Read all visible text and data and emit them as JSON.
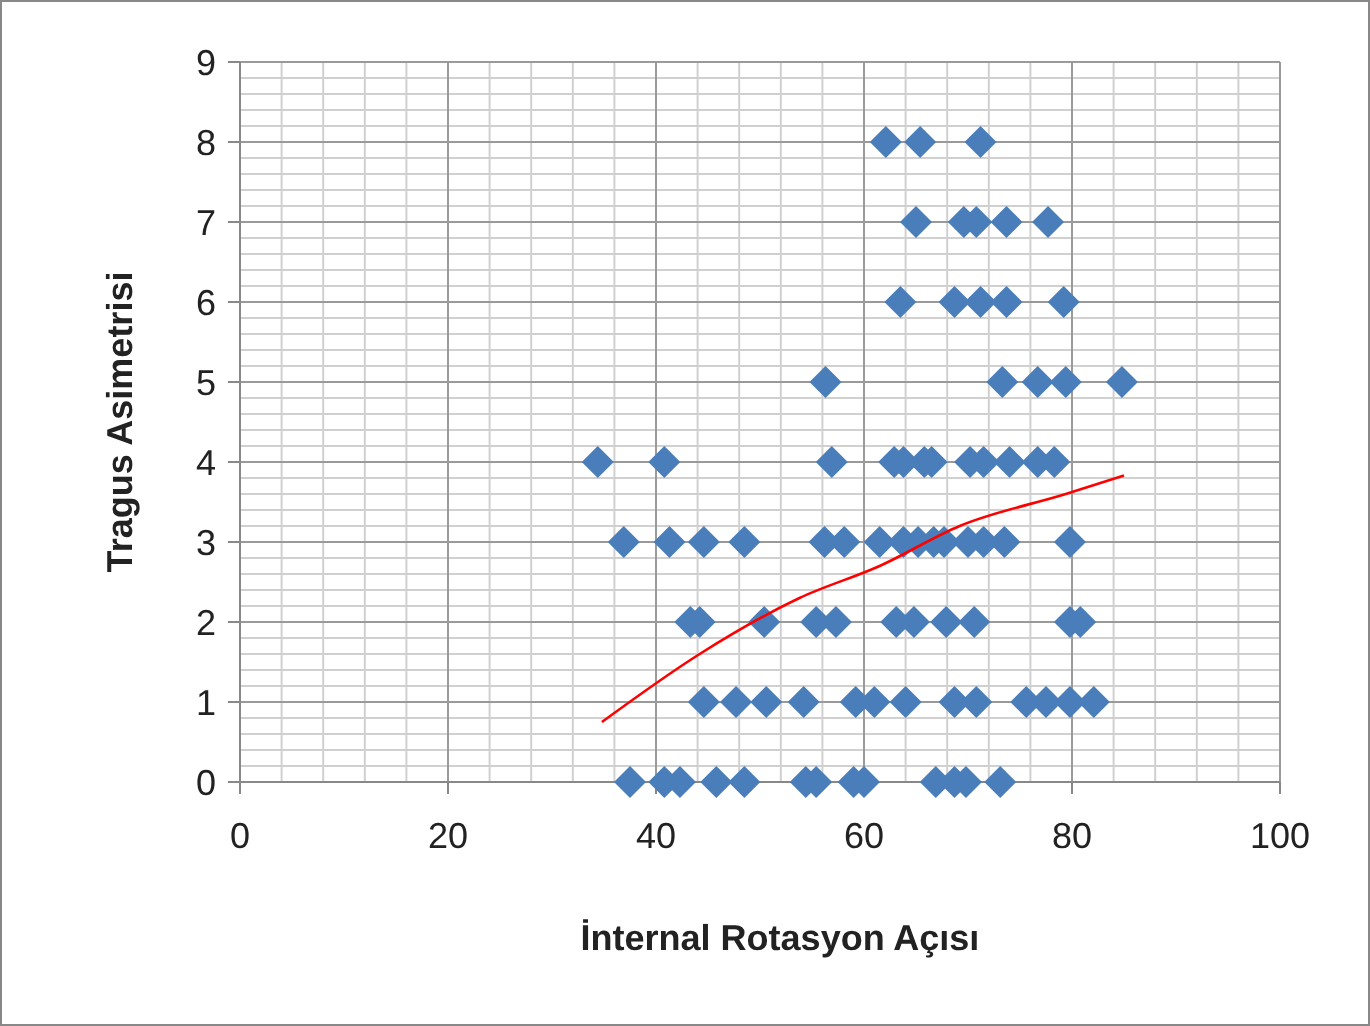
{
  "chart_data": {
    "type": "scatter",
    "xlabel": "İnternal Rotasyon Açısı",
    "ylabel": "Tragus Asimetrisi",
    "xlim": [
      0,
      100
    ],
    "xticks": [
      0,
      20,
      40,
      60,
      80,
      100
    ],
    "ylim": [
      0,
      9
    ],
    "yticks": [
      0,
      1,
      2,
      3,
      4,
      5,
      6,
      7,
      8,
      9
    ],
    "grid": true,
    "series": [
      {
        "marker": "diamond",
        "color": "#4a7ebb",
        "x": [
          62.1,
          65.4,
          71.2,
          65,
          69.6,
          70.8,
          73.7,
          77.7,
          63.5,
          68.7,
          71.2,
          73.7,
          79.2,
          56.3,
          73.3,
          76.7,
          79.4,
          84.8,
          34.4,
          40.8,
          56.9,
          62.9,
          63.8,
          65.8,
          66.5,
          70.2,
          71.5,
          74,
          76.7,
          78.3,
          36.9,
          41.3,
          44.6,
          48.5,
          56.2,
          58.1,
          61.5,
          63.8,
          65.2,
          66.7,
          67.7,
          70,
          71.5,
          73.5,
          79.8,
          43.3,
          44.2,
          50.4,
          55.4,
          57.3,
          63.1,
          64.8,
          67.9,
          70.6,
          79.8,
          80.8,
          44.6,
          47.7,
          50.6,
          54.2,
          59.2,
          61,
          64,
          68.7,
          70.8,
          75.6,
          77.5,
          79.8,
          82.1,
          37.5,
          40.8,
          42.3,
          45.8,
          48.5,
          54.4,
          55.4,
          59,
          60,
          66.9,
          68.7,
          69.8,
          73.1
        ],
        "values": [
          8,
          8,
          8,
          7,
          7,
          7,
          7,
          7,
          6,
          6,
          6,
          6,
          6,
          5,
          5,
          5,
          5,
          5,
          4,
          4,
          4,
          4,
          4,
          4,
          4,
          4,
          4,
          4,
          4,
          4,
          3,
          3,
          3,
          3,
          3,
          3,
          3,
          3,
          3,
          3,
          3,
          3,
          3,
          3,
          3,
          2,
          2,
          2,
          2,
          2,
          2,
          2,
          2,
          2,
          2,
          2,
          1,
          1,
          1,
          1,
          1,
          1,
          1,
          1,
          1,
          1,
          1,
          1,
          1,
          0,
          0,
          0,
          0,
          0,
          0,
          0,
          0,
          0,
          0,
          0,
          0,
          0
        ]
      },
      {
        "type": "line",
        "marker": "none",
        "line_style": "solid",
        "color": "#ff0000",
        "x": [
          34.8,
          44.2,
          53.8,
          61.5,
          69.2,
          79.4,
          85
        ],
        "values": [
          0.75,
          1.6,
          2.3,
          2.7,
          3.2,
          3.6,
          3.83
        ]
      }
    ]
  }
}
